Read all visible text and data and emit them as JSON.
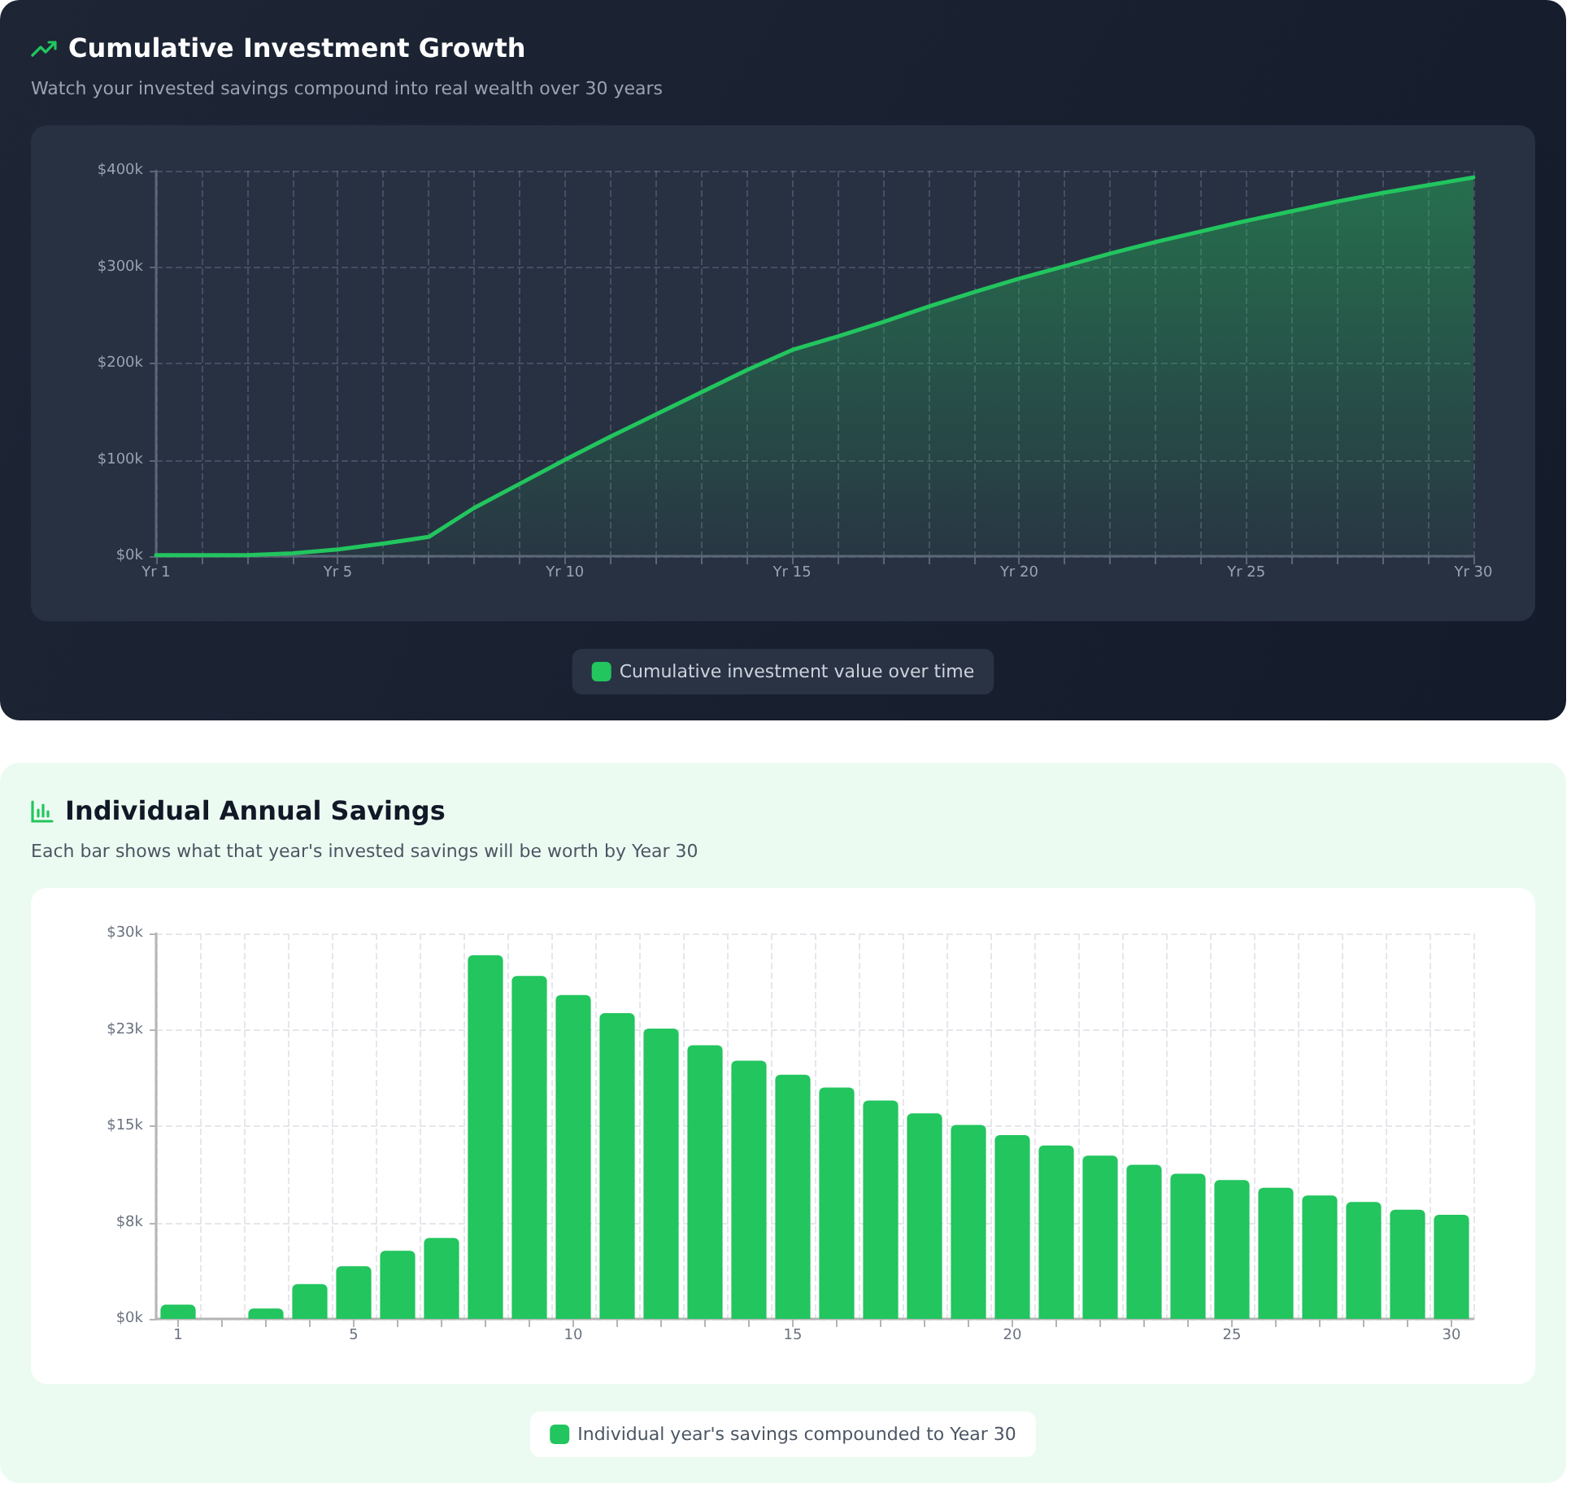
{
  "chart_data": [
    {
      "type": "area",
      "title": "Cumulative Investment Growth",
      "subtitle": "Watch your invested savings compound into real wealth over 30 years",
      "categories": [
        "Yr 1",
        null,
        null,
        null,
        "Yr 5",
        null,
        null,
        null,
        null,
        "Yr 10",
        null,
        null,
        null,
        null,
        "Yr 15",
        null,
        null,
        null,
        null,
        "Yr 20",
        null,
        null,
        null,
        null,
        "Yr 25",
        null,
        null,
        null,
        null,
        "Yr 30"
      ],
      "series": [
        {
          "name": "Cumulative investment value over time",
          "color": "#22c55e",
          "values": [
            1000,
            1000,
            1000,
            3000,
            7000,
            13000,
            20000,
            50000,
            75000,
            100000,
            124000,
            147000,
            170000,
            193000,
            214000,
            228000,
            243000,
            259000,
            274000,
            288000,
            301000,
            314000,
            326000,
            337000,
            348000,
            358000,
            368000,
            377000,
            385000,
            393000
          ]
        }
      ],
      "ylim": [
        0,
        400000
      ],
      "yticks": [
        {
          "value": 0,
          "label": "$0k"
        },
        {
          "value": 100000,
          "label": "$100k"
        },
        {
          "value": 200000,
          "label": "$200k"
        },
        {
          "value": 300000,
          "label": "$300k"
        },
        {
          "value": 400000,
          "label": "$400k"
        }
      ],
      "grid": true,
      "legend": "bottom",
      "marker": "none"
    },
    {
      "type": "bar",
      "title": "Individual Annual Savings",
      "subtitle": "Each bar shows what that year's invested savings will be worth by Year 30",
      "categories": [
        "1",
        null,
        null,
        null,
        "5",
        null,
        null,
        null,
        null,
        "10",
        null,
        null,
        null,
        null,
        "15",
        null,
        null,
        null,
        null,
        "20",
        null,
        null,
        null,
        null,
        "25",
        null,
        null,
        null,
        null,
        "30"
      ],
      "series": [
        {
          "name": "Individual year's savings compounded to Year 30",
          "color": "#22c55e",
          "values": [
            1100,
            0,
            800,
            2700,
            4100,
            5300,
            6300,
            28300,
            26700,
            25200,
            23800,
            22600,
            21300,
            20100,
            19000,
            18000,
            17000,
            16000,
            15100,
            14300,
            13500,
            12700,
            12000,
            11300,
            10800,
            10200,
            9600,
            9100,
            8500,
            8100
          ]
        }
      ],
      "ylim": [
        0,
        30000
      ],
      "yticks": [
        {
          "value": 0,
          "label": "$0k"
        },
        {
          "value": 7500,
          "label": "$8k"
        },
        {
          "value": 15000,
          "label": "$15k"
        },
        {
          "value": 22500,
          "label": "$23k"
        },
        {
          "value": 30000,
          "label": "$30k"
        }
      ],
      "grid": true,
      "legend": "bottom"
    }
  ]
}
